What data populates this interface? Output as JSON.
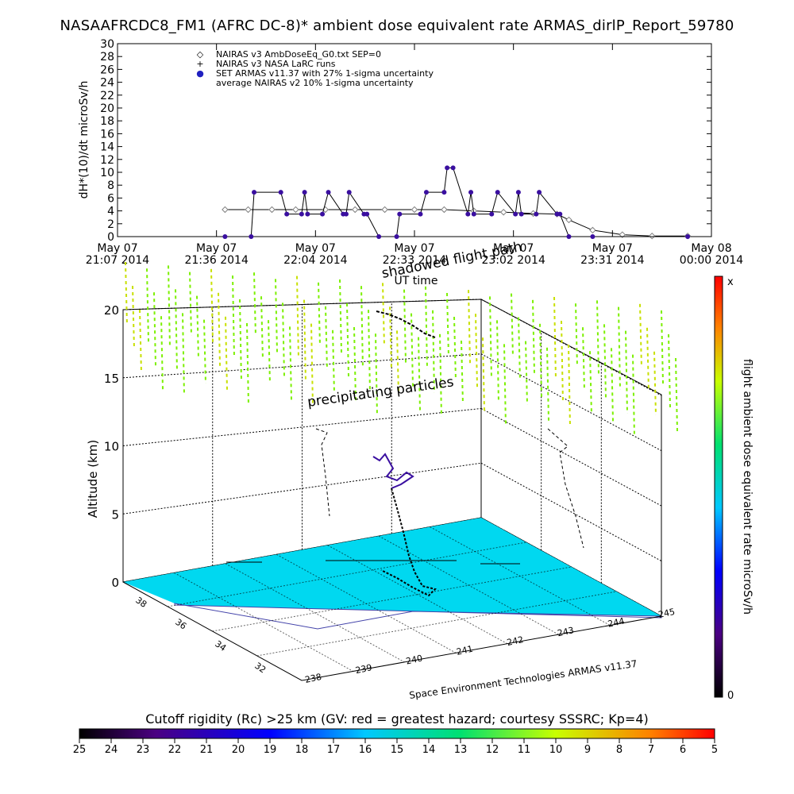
{
  "title": "NASAAFRCDC8_FM1 (AFRC DC-8)* ambient dose equivalent rate ARMAS_dirlP_Report_59780",
  "chart_data": [
    {
      "type": "line",
      "ylabel": "dH*(10)/dt microSv/h",
      "xlabel": "UT time",
      "ylim": [
        0,
        30
      ],
      "yticks": [
        "0",
        "2",
        "4",
        "6",
        "8",
        "10",
        "12",
        "14",
        "16",
        "18",
        "20",
        "22",
        "24",
        "26",
        "28",
        "30"
      ],
      "xticks": [
        {
          "line1": "May 07",
          "line2": "21:07 2014"
        },
        {
          "line1": "May 07",
          "line2": "21:36 2014"
        },
        {
          "line1": "May 07",
          "line2": "22:04 2014"
        },
        {
          "line1": "May 07",
          "line2": "22:33 2014"
        },
        {
          "line1": "May 07",
          "line2": "23:02 2014"
        },
        {
          "line1": "May 07",
          "line2": "23:31 2014"
        },
        {
          "line1": "May 08",
          "line2": "00:00 2014"
        }
      ],
      "legend": [
        {
          "symbol": "◇",
          "label": "NAIRAS v3 AmbDoseEq_G0.txt SEP=0"
        },
        {
          "symbol": "+",
          "label": "NAIRAS v3 NASA LaRC runs"
        },
        {
          "symbol": "●",
          "label": "SET ARMAS v11.37 with 27% 1-sigma uncertainty"
        },
        {
          "symbol": "",
          "label": "average NAIRAS v2 10% 1-sigma uncertainty"
        }
      ],
      "series": [
        {
          "name": "NAIRAS v3 AmbDoseEq_G0.txt SEP=0",
          "color": "#808080",
          "x": [
            0.181,
            0.22,
            0.26,
            0.3,
            0.35,
            0.4,
            0.45,
            0.5,
            0.55,
            0.6,
            0.65,
            0.7,
            0.74,
            0.76,
            0.8,
            0.85,
            0.9,
            0.96
          ],
          "values": [
            4.2,
            4.2,
            4.2,
            4.2,
            4.2,
            4.2,
            4.2,
            4.2,
            4.2,
            4.0,
            3.8,
            3.6,
            3.5,
            2.6,
            1.0,
            0.3,
            0.1,
            0.1
          ]
        },
        {
          "name": "SET ARMAS v11.37 with 27% 1-sigma uncertainty",
          "color": "#3a0fa0",
          "x": [
            0.181,
            0.225,
            0.23,
            0.275,
            0.285,
            0.31,
            0.315,
            0.32,
            0.345,
            0.355,
            0.38,
            0.385,
            0.39,
            0.415,
            0.42,
            0.44,
            0.47,
            0.475,
            0.51,
            0.52,
            0.55,
            0.555,
            0.565,
            0.59,
            0.595,
            0.6,
            0.63,
            0.64,
            0.67,
            0.675,
            0.68,
            0.705,
            0.71,
            0.74,
            0.745,
            0.76,
            0.8,
            0.96
          ],
          "values": [
            0,
            0,
            6.9,
            6.9,
            3.5,
            3.5,
            6.9,
            3.5,
            3.5,
            6.9,
            3.5,
            3.5,
            6.9,
            3.5,
            3.5,
            0,
            0,
            3.5,
            3.5,
            6.9,
            6.9,
            10.7,
            10.7,
            3.5,
            6.9,
            3.5,
            3.5,
            6.9,
            3.5,
            6.9,
            3.5,
            3.5,
            6.9,
            3.5,
            3.5,
            0,
            0,
            0
          ]
        }
      ],
      "colorbar": {
        "label": "flight ambient dose equivalent rate microSv/h",
        "top_label": "x",
        "bottom_label": "0"
      },
      "colors": {
        "ocean": "#00d8f0",
        "field": "#7cf000",
        "track": "#3a0fa0"
      }
    },
    {
      "type": "heatmap",
      "zlabel": "Altitude (km)",
      "zticks": [
        "0",
        "5",
        "10",
        "15",
        "20"
      ],
      "lat_ticks": [
        "38",
        "36",
        "34",
        "32"
      ],
      "lon_ticks": [
        "238",
        "239",
        "240",
        "241",
        "242",
        "243",
        "244",
        "245"
      ],
      "annotations": [
        "shadowed flight path",
        "precipitating particles"
      ],
      "credit": "Space Environment Technologies ARMAS v11.37"
    },
    {
      "type": "heatmap",
      "title": "Cutoff rigidity (Rc) >25 km (GV: red = greatest hazard; courtesy SSSRC; Kp=4)",
      "ticks": [
        "25",
        "24",
        "23",
        "22",
        "21",
        "20",
        "19",
        "18",
        "17",
        "16",
        "15",
        "14",
        "13",
        "12",
        "11",
        "10",
        "9",
        "8",
        "7",
        "6",
        "5"
      ]
    }
  ]
}
